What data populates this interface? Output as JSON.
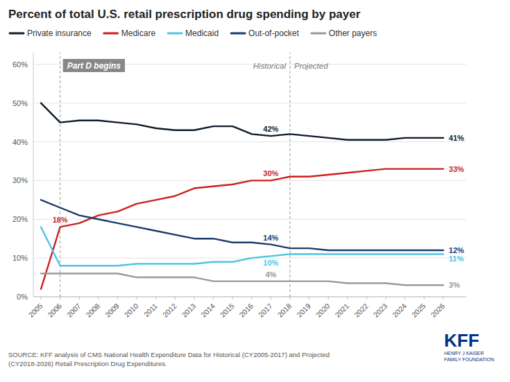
{
  "chart_data": {
    "type": "line",
    "title": "Percent of total U.S. retail prescription drug spending by payer",
    "x": [
      2005,
      2006,
      2007,
      2008,
      2009,
      2010,
      2011,
      2012,
      2013,
      2014,
      2015,
      2016,
      2017,
      2018,
      2019,
      2020,
      2021,
      2022,
      2023,
      2024,
      2025,
      2026
    ],
    "series": [
      {
        "name": "Private insurance",
        "color": "#0d1b2a",
        "values": [
          50,
          45,
          45.5,
          45.5,
          45,
          44.5,
          43.5,
          43,
          43,
          44,
          44,
          42,
          41.5,
          42,
          41.5,
          41,
          40.5,
          40.5,
          40.5,
          41,
          41,
          41
        ],
        "value_labels": [
          null,
          null,
          null,
          null,
          null,
          null,
          null,
          null,
          null,
          null,
          null,
          null,
          "42%",
          null,
          null,
          null,
          null,
          null,
          null,
          null,
          null,
          "41%"
        ]
      },
      {
        "name": "Medicare",
        "color": "#cc1f1f",
        "values": [
          2,
          18,
          19,
          21,
          22,
          24,
          25,
          26,
          28,
          28.5,
          29,
          30,
          30,
          31,
          31,
          31.5,
          32,
          32.5,
          33,
          33,
          33,
          33
        ],
        "value_labels": [
          null,
          "18%",
          null,
          null,
          null,
          null,
          null,
          null,
          null,
          null,
          null,
          null,
          "30%",
          null,
          null,
          null,
          null,
          null,
          null,
          null,
          null,
          "33%"
        ]
      },
      {
        "name": "Medicaid",
        "color": "#4fc3e8",
        "values": [
          18,
          8,
          8,
          8,
          8,
          8.5,
          8.5,
          8.5,
          8.5,
          9,
          9,
          10,
          10.5,
          11,
          11,
          11,
          11,
          11,
          11,
          11,
          11,
          11
        ],
        "value_labels": [
          null,
          null,
          null,
          null,
          null,
          null,
          null,
          null,
          null,
          null,
          null,
          null,
          "10%",
          null,
          null,
          null,
          null,
          null,
          null,
          null,
          null,
          "11%"
        ]
      },
      {
        "name": "Out-of-pocket",
        "color": "#1b3a6b",
        "values": [
          25,
          23,
          21,
          20,
          19,
          18,
          17,
          16,
          15,
          15,
          14,
          14,
          13.5,
          12.5,
          12.5,
          12,
          12,
          12,
          12,
          12,
          12,
          12
        ],
        "value_labels": [
          null,
          null,
          null,
          null,
          null,
          null,
          null,
          null,
          null,
          null,
          null,
          null,
          "14%",
          null,
          null,
          null,
          null,
          null,
          null,
          null,
          null,
          "12%"
        ]
      },
      {
        "name": "Other payers",
        "color": "#999999",
        "values": [
          6,
          6,
          6,
          6,
          6,
          5,
          5,
          5,
          5,
          4,
          4,
          4,
          4,
          4,
          4,
          4,
          3.5,
          3.5,
          3.5,
          3,
          3,
          3
        ],
        "value_labels": [
          null,
          null,
          null,
          null,
          null,
          null,
          null,
          null,
          null,
          null,
          null,
          null,
          "4%",
          null,
          null,
          null,
          null,
          null,
          null,
          null,
          null,
          "3%"
        ]
      }
    ],
    "xlim": [
      2004.6,
      2027.2
    ],
    "xticks": [
      2005,
      2006,
      2007,
      2008,
      2009,
      2010,
      2011,
      2012,
      2013,
      2014,
      2015,
      2016,
      2017,
      2018,
      2019,
      2020,
      2021,
      2022,
      2023,
      2024,
      2025,
      2026
    ],
    "ylim": [
      0,
      63
    ],
    "yticks": [
      {
        "value": 0,
        "label": "0%"
      },
      {
        "value": 10,
        "label": "10%"
      },
      {
        "value": 20,
        "label": "20%"
      },
      {
        "value": 30,
        "label": "30%"
      },
      {
        "value": 40,
        "label": "40%"
      },
      {
        "value": 50,
        "label": "50%"
      },
      {
        "value": 60,
        "label": "60%"
      }
    ],
    "grid": true,
    "legend": "top",
    "annotations": [
      {
        "x": 2006,
        "text": "Part D begins"
      },
      {
        "x": 2018,
        "text": "Historical"
      },
      {
        "x": 2018,
        "text": "Projected"
      }
    ],
    "source": [
      "SOURCE: KFF analysis of CMS National Health Expenditure Data for Historical (CY2005-2017) and Projected",
      "(CY2018-2026) Retail Prescription Drug Expenditures."
    ],
    "logo": [
      "KFF",
      "HENRY J KAISER",
      "FAMILY FOUNDATION"
    ]
  }
}
